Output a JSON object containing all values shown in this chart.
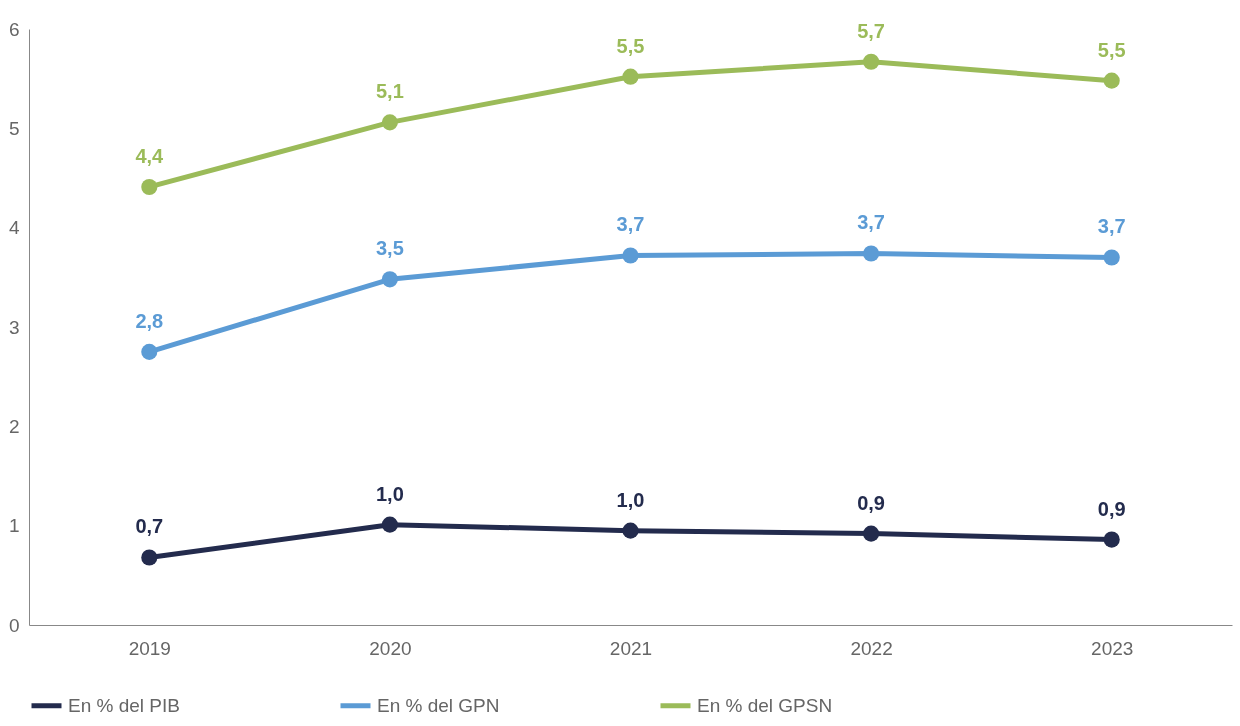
{
  "chart_data": {
    "type": "line",
    "categories": [
      "2019",
      "2020",
      "2021",
      "2022",
      "2023"
    ],
    "series": [
      {
        "name": "En % del PIB",
        "color": "#232b4d",
        "values": [
          0.68,
          1.01,
          0.95,
          0.92,
          0.86
        ],
        "value_labels": [
          "0,7",
          "1,0",
          "1,0",
          "0,9",
          "0,9"
        ]
      },
      {
        "name": "En % del GPN",
        "color": "#5b9bd5",
        "values": [
          2.75,
          3.48,
          3.72,
          3.74,
          3.7
        ],
        "value_labels": [
          "2,8",
          "3,5",
          "3,7",
          "3,7",
          "3,7"
        ]
      },
      {
        "name": "En % del GPSN",
        "color": "#9bbb59",
        "values": [
          4.41,
          5.06,
          5.52,
          5.67,
          5.48
        ],
        "value_labels": [
          "4,4",
          "5,1",
          "5,5",
          "5,7",
          "5,5"
        ]
      }
    ],
    "ylim": [
      0,
      6
    ],
    "yticks": [
      0,
      1,
      2,
      3,
      4,
      5,
      6
    ],
    "legend": "bottom",
    "marker": "circle",
    "line_style": "solid"
  }
}
